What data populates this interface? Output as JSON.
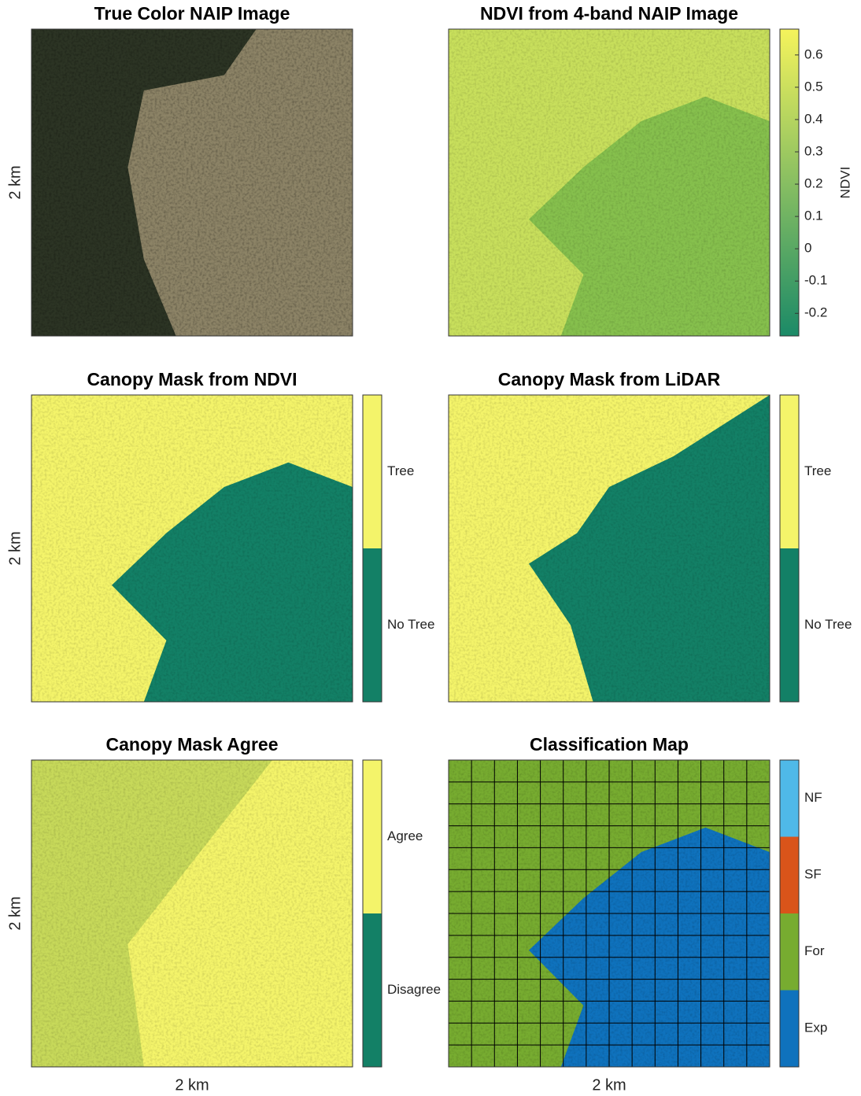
{
  "panels": [
    {
      "title": "True Color NAIP Image",
      "y_label": "2 km"
    },
    {
      "title": "NDVI from 4-band NAIP Image",
      "colorbar": {
        "label": "NDVI",
        "lim": [
          -0.27,
          0.68
        ],
        "ticks": [
          -0.2,
          -0.1,
          0,
          0.1,
          0.2,
          0.3,
          0.4,
          0.5,
          0.6
        ],
        "colors": [
          "#1b8a67",
          "#f5f35c"
        ]
      }
    },
    {
      "title": "Canopy Mask from NDVI",
      "y_label": "2 km",
      "colorbar": {
        "categories": [
          {
            "label": "Tree",
            "color": "#f4f46a"
          },
          {
            "label": "No Tree",
            "color": "#138066"
          }
        ]
      }
    },
    {
      "title": "Canopy Mask from LiDAR",
      "colorbar": {
        "categories": [
          {
            "label": "Tree",
            "color": "#f4f46a"
          },
          {
            "label": "No Tree",
            "color": "#138066"
          }
        ]
      }
    },
    {
      "title": "Canopy Mask Agree",
      "y_label": "2 km",
      "x_label": "2 km",
      "colorbar": {
        "categories": [
          {
            "label": "Agree",
            "color": "#f4f46a"
          },
          {
            "label": "Disagree",
            "color": "#138066"
          }
        ]
      }
    },
    {
      "title": "Classification Map",
      "x_label": "2 km",
      "colorbar": {
        "categories": [
          {
            "label": "NF",
            "color": "#4fb9e8"
          },
          {
            "label": "SF",
            "color": "#d9541a"
          },
          {
            "label": "For",
            "color": "#77ac30"
          },
          {
            "label": "Exp",
            "color": "#0f72bd"
          }
        ]
      }
    }
  ]
}
